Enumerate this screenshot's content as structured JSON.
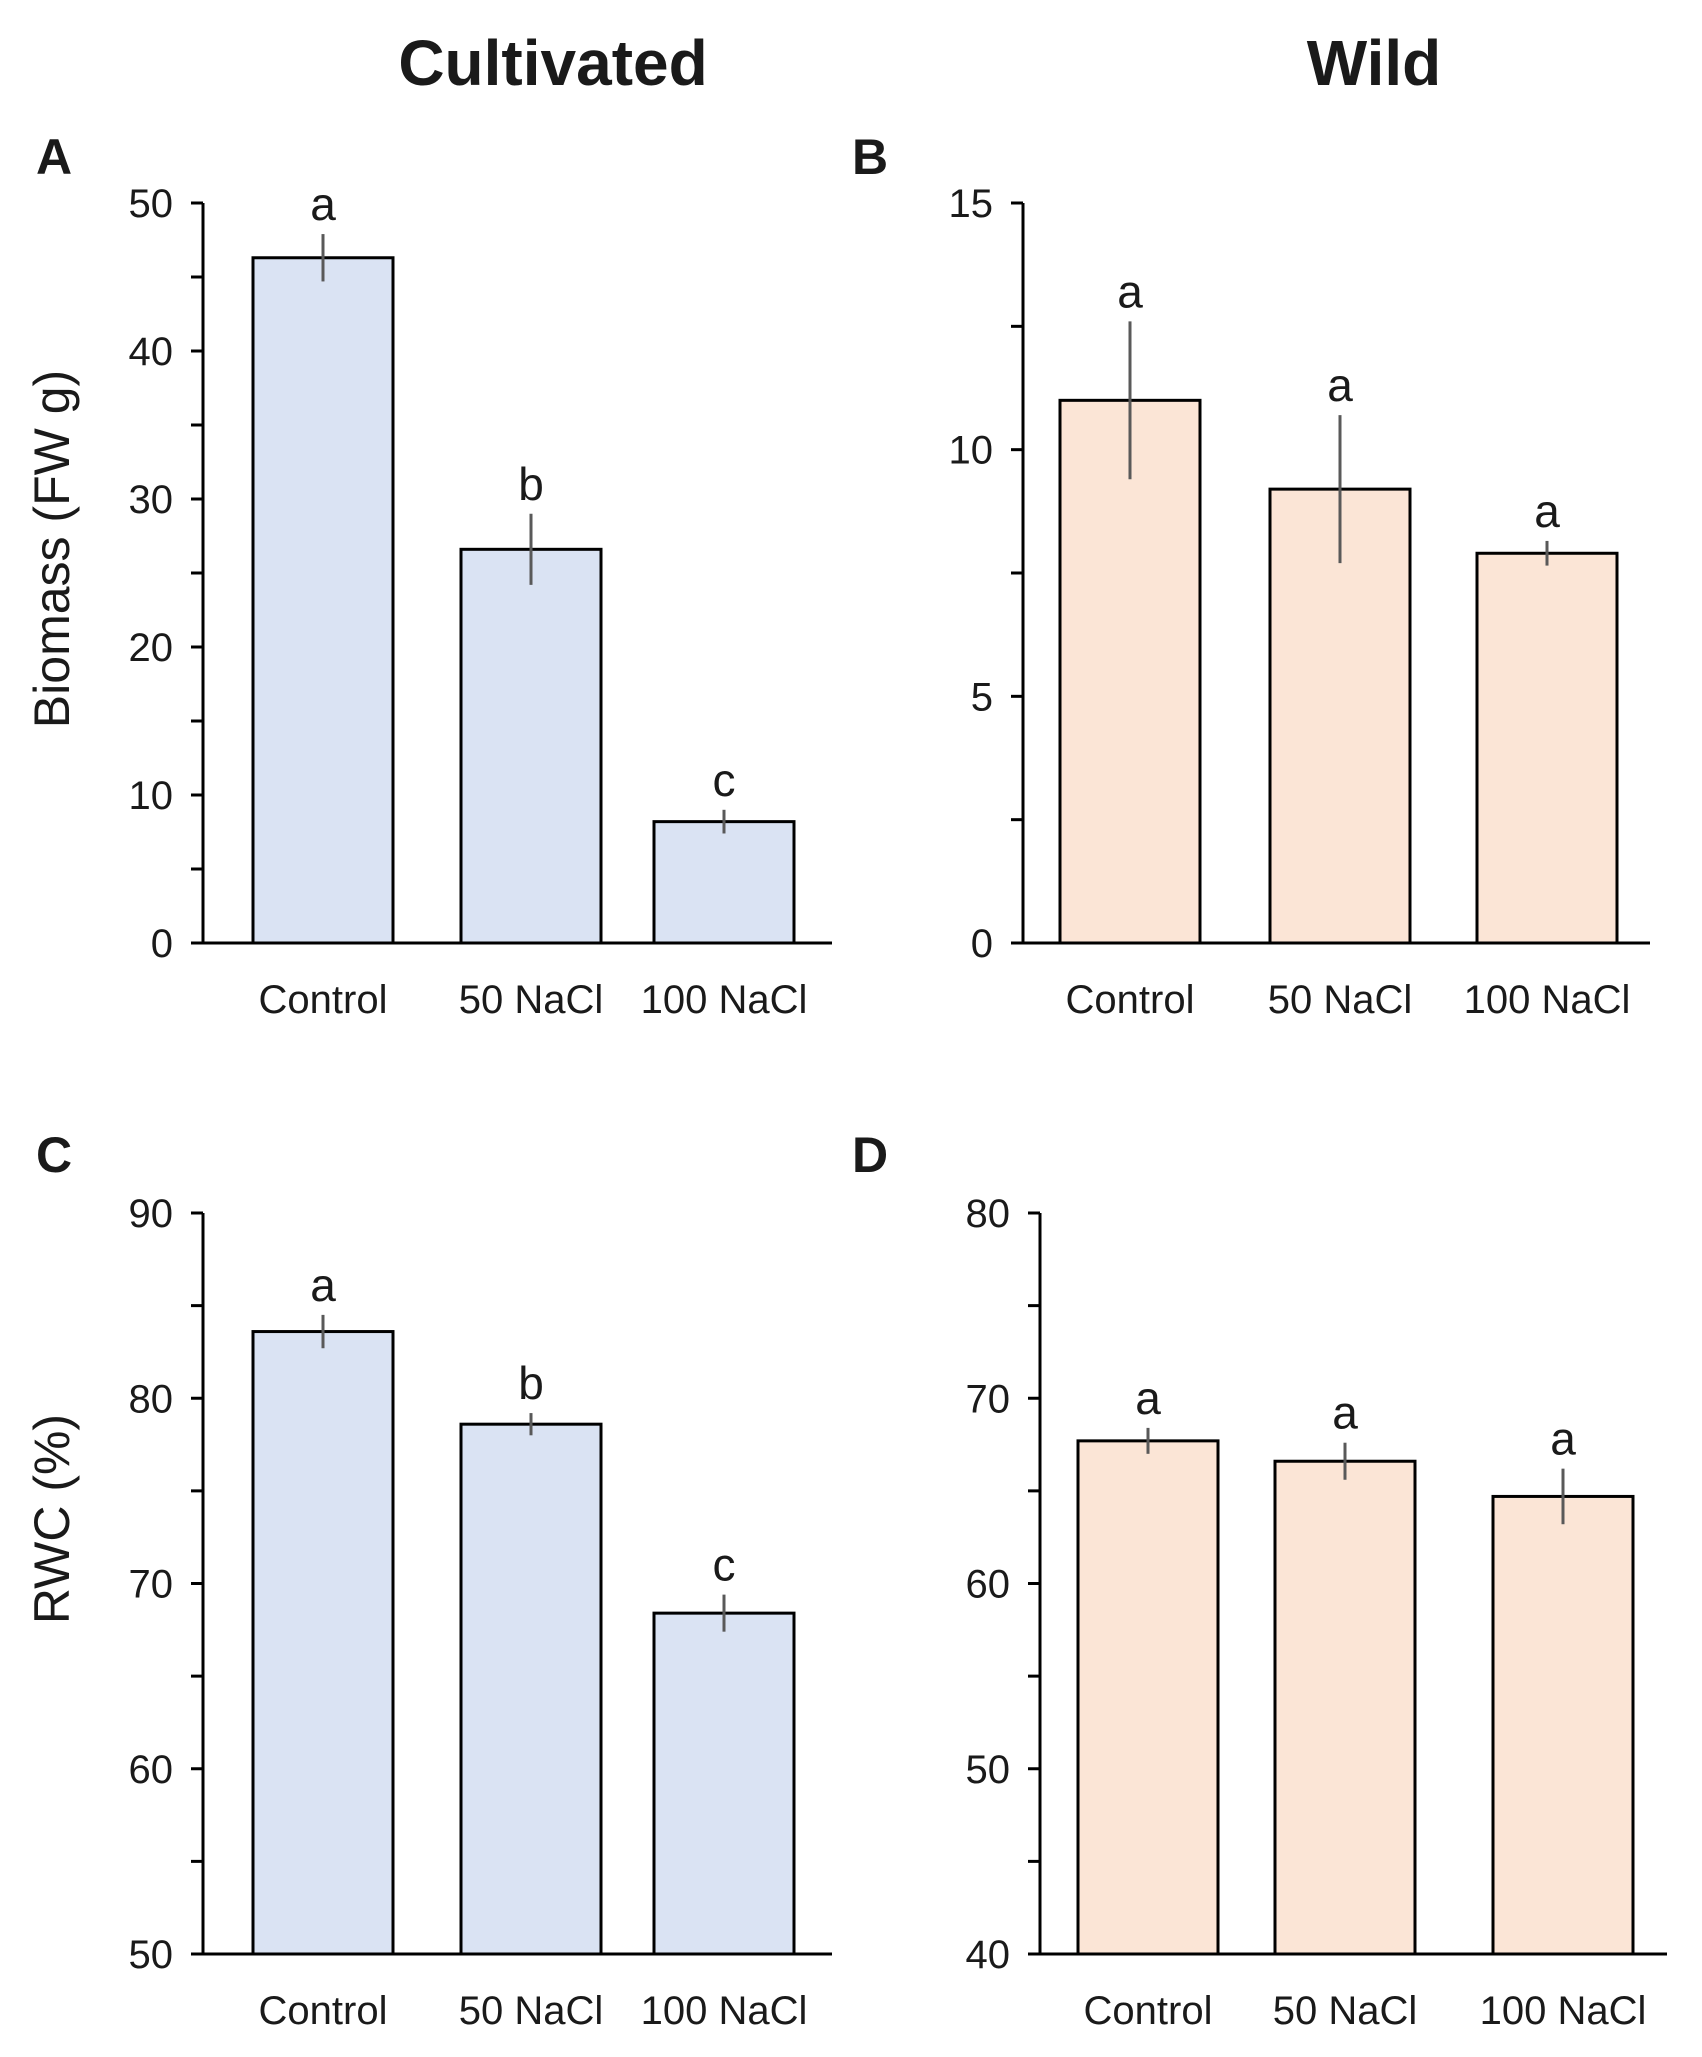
{
  "column_titles": [
    "Cultivated",
    "Wild"
  ],
  "row_labels": [
    "Biomass (FW g)",
    "RWC (%)"
  ],
  "colors": {
    "cultivated_fill": "#dae3f3",
    "wild_fill": "#fbe5d6",
    "edge": "#000000",
    "errorbar": "#595959"
  },
  "chart_data": [
    {
      "panel": "A",
      "type": "bar",
      "column": "Cultivated",
      "categories": [
        "Control",
        "50 NaCl",
        "100 NaCl"
      ],
      "values": [
        46.3,
        26.6,
        8.2
      ],
      "errors": [
        1.6,
        2.4,
        0.8
      ],
      "letters": [
        "a",
        "b",
        "c"
      ],
      "ylabel": "Biomass (FW g)",
      "ylim": [
        0,
        50
      ],
      "yticks": [
        0,
        10,
        20,
        30,
        40,
        50
      ],
      "minor_step": 5
    },
    {
      "panel": "B",
      "type": "bar",
      "column": "Wild",
      "categories": [
        "Control",
        "50 NaCl",
        "100 NaCl"
      ],
      "values": [
        11.0,
        9.2,
        7.9
      ],
      "errors": [
        1.6,
        1.5,
        0.25
      ],
      "letters": [
        "a",
        "a",
        "a"
      ],
      "ylabel": "",
      "ylim": [
        0,
        15
      ],
      "yticks": [
        0,
        5,
        10,
        15
      ],
      "minor_step": 2.5
    },
    {
      "panel": "C",
      "type": "bar",
      "column": "Cultivated",
      "categories": [
        "Control",
        "50 NaCl",
        "100 NaCl"
      ],
      "values": [
        83.6,
        78.6,
        68.4
      ],
      "errors": [
        0.9,
        0.6,
        1.0
      ],
      "letters": [
        "a",
        "b",
        "c"
      ],
      "ylabel": "RWC (%)",
      "ylim": [
        50,
        90
      ],
      "yticks": [
        50,
        60,
        70,
        80,
        90
      ],
      "minor_step": 5
    },
    {
      "panel": "D",
      "type": "bar",
      "column": "Wild",
      "categories": [
        "Control",
        "50 NaCl",
        "100 NaCl"
      ],
      "values": [
        67.7,
        66.6,
        64.7
      ],
      "errors": [
        0.7,
        1.0,
        1.5
      ],
      "letters": [
        "a",
        "a",
        "a"
      ],
      "ylabel": "",
      "ylim": [
        40,
        80
      ],
      "yticks": [
        40,
        50,
        60,
        70,
        80
      ],
      "minor_step": 5
    }
  ]
}
